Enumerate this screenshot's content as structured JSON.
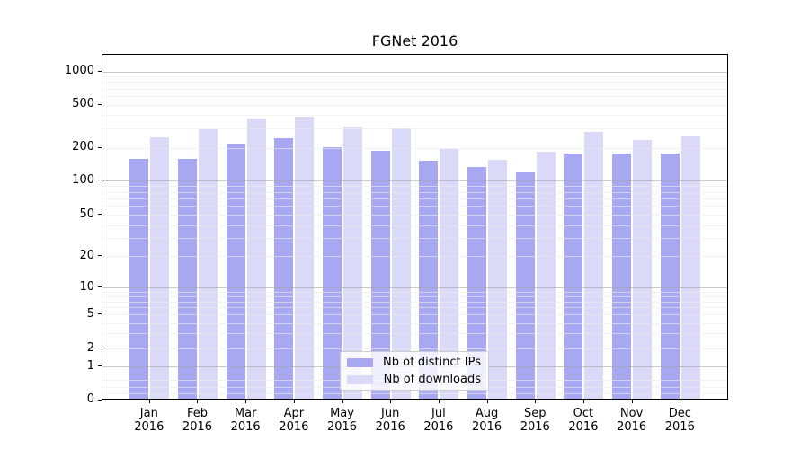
{
  "chart_data": {
    "type": "bar",
    "title": "FGNet 2016",
    "categories": [
      "Jan",
      "Feb",
      "Mar",
      "Apr",
      "May",
      "Jun",
      "Jul",
      "Aug",
      "Sep",
      "Oct",
      "Nov",
      "Dec"
    ],
    "category_year": "2016",
    "series": [
      {
        "name": "Nb of distinct IPs",
        "color": "#a8a8f2",
        "values": [
          153,
          155,
          211,
          237,
          198,
          182,
          148,
          131,
          116,
          174,
          174,
          172
        ]
      },
      {
        "name": "Nb of downloads",
        "color": "#dadaf8",
        "values": [
          245,
          290,
          362,
          376,
          304,
          293,
          188,
          152,
          180,
          271,
          229,
          247
        ]
      }
    ],
    "y_scale": "symlog",
    "y_ticks": [
      0,
      1,
      2,
      5,
      10,
      20,
      50,
      100,
      200,
      500,
      1000
    ],
    "ylim": [
      0,
      1400
    ],
    "grid": "horizontal, major and minor",
    "legend_position": "bottom-center",
    "xlabel": "",
    "ylabel": ""
  }
}
